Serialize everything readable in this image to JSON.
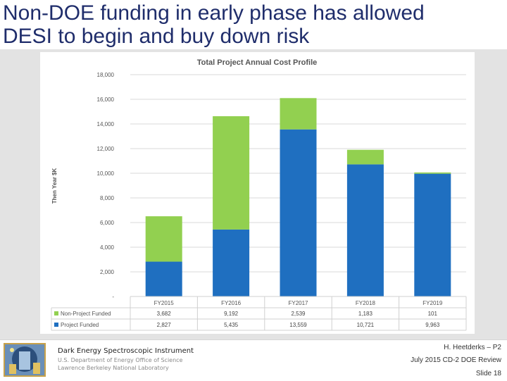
{
  "slide": {
    "title_line1": "Non-DOE funding in early phase has allowed",
    "title_line2": "DESI to begin and buy down risk"
  },
  "chart_data": {
    "type": "bar",
    "stacked": true,
    "title": "Total Project Annual Cost Profile",
    "ylabel": "Then Year $K",
    "xlabel": "",
    "ylim": [
      0,
      18000
    ],
    "yticks": [
      0,
      2000,
      4000,
      6000,
      8000,
      10000,
      12000,
      14000,
      16000,
      18000
    ],
    "ytick_labels": [
      "-",
      "2,000",
      "4,000",
      "6,000",
      "8,000",
      "10,000",
      "12,000",
      "14,000",
      "16,000",
      "18,000"
    ],
    "grid": true,
    "categories": [
      "FY2015",
      "FY2016",
      "FY2017",
      "FY2018",
      "FY2019"
    ],
    "series": [
      {
        "name": "Project Funded",
        "color": "#1f6fc0",
        "values": [
          2827,
          5435,
          13559,
          10721,
          9963
        ],
        "labels": [
          "2,827",
          "5,435",
          "13,559",
          "10,721",
          "9,963"
        ]
      },
      {
        "name": "Non-Project Funded",
        "color": "#92d050",
        "values": [
          3682,
          9192,
          2539,
          1183,
          101
        ],
        "labels": [
          "3,682",
          "9,192",
          "2,539",
          "1,183",
          "101"
        ]
      }
    ],
    "table_row_order": [
      "Non-Project Funded",
      "Project Funded"
    ]
  },
  "footer": {
    "org": "Dark Energy Spectroscopic Instrument",
    "doe": "U.S. Department of Energy Office of Science",
    "lab": "Lawrence Berkeley National Laboratory",
    "presenter": "H. Heetderks – P2",
    "review": "July 2015 CD-2 DOE Review",
    "slide_number": "Slide 18"
  }
}
